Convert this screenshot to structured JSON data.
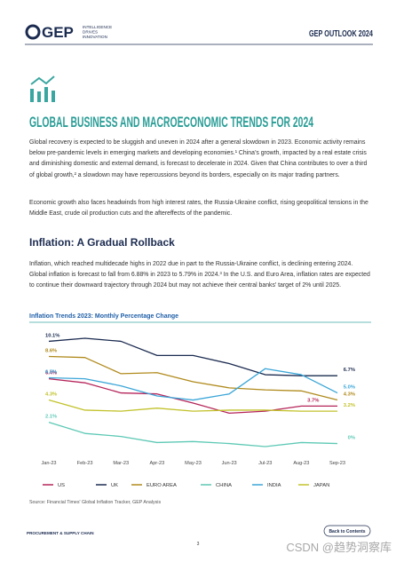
{
  "header": {
    "logo": "GEP",
    "tagline": [
      "INTELLIGENCE",
      "DRIVES",
      "INNOVATION"
    ],
    "publication": "GEP OUTLOOK 2024"
  },
  "title": "GLOBAL BUSINESS AND MACROECONOMIC TRENDS FOR 2024",
  "paragraphs": [
    "Global recovery is expected to be sluggish and uneven in 2024 after a general slowdown in 2023. Economic activity remains below pre-pandemic levels in emerging markets and developing economies.¹ China’s growth, impacted by a real estate crisis and diminishing domestic and external demand, is forecast to decelerate in 2024. Given that China contributes to over a third of global growth,² a slowdown may have repercussions beyond its borders, especially on its major trading partners.",
    "Economic growth also faces headwinds from high interest rates, the Russia-Ukraine conflict, rising geopolitical tensions in the Middle East, crude oil production cuts and the aftereffects of the pandemic."
  ],
  "section_heading": "Inflation: A Gradual Rollback",
  "section_paragraph": "Inflation, which reached multidecade highs in 2022 due in part to the Russia-Ukraine conflict, is declining entering 2024. Global inflation is forecast to fall from 6.88% in 2023 to 5.79% in 2024.³ In the U.S. and Euro Area, inflation rates are expected to continue their downward trajectory through 2024 but may not achieve their central banks’ target of 2% until 2025.",
  "chart_data": {
    "type": "line",
    "title": "Inflation Trends 2023: Monthly Percentage Change",
    "categories": [
      "Jan-23",
      "Feb-23",
      "Mar-23",
      "Apr-23",
      "May-23",
      "Jun-23",
      "Jul-23",
      "Aug-23",
      "Sep-23"
    ],
    "series": [
      {
        "name": "US",
        "color": "#b5245a",
        "values": [
          6.4,
          6.0,
          5.0,
          4.9,
          4.0,
          3.0,
          3.2,
          3.7,
          3.7
        ],
        "value_labels": [
          "6.4%",
          null,
          null,
          null,
          null,
          null,
          null,
          "3.7%",
          null
        ]
      },
      {
        "name": "UK",
        "color": "#1b2b50",
        "values": [
          10.1,
          10.4,
          10.1,
          8.7,
          8.7,
          7.9,
          6.8,
          6.7,
          6.7
        ],
        "value_labels": [
          "10.1%",
          null,
          null,
          null,
          null,
          null,
          null,
          null,
          "6.7%"
        ]
      },
      {
        "name": "EURO AREA",
        "color": "#b08a1c",
        "values": [
          8.6,
          8.5,
          6.9,
          7.0,
          6.1,
          5.5,
          5.3,
          5.2,
          4.3
        ],
        "value_labels": [
          "8.6%",
          null,
          null,
          null,
          null,
          null,
          null,
          null,
          "4.3%"
        ]
      },
      {
        "name": "CHINA",
        "color": "#5ec9b5",
        "values": [
          2.1,
          1.0,
          0.7,
          0.1,
          0.2,
          0.0,
          -0.3,
          0.1,
          0.0
        ],
        "value_labels": [
          "2.1%",
          null,
          null,
          null,
          null,
          null,
          null,
          null,
          "0%"
        ]
      },
      {
        "name": "INDIA",
        "color": "#3aa6d8",
        "values": [
          6.5,
          6.4,
          5.7,
          4.7,
          4.3,
          4.9,
          7.4,
          6.8,
          5.0
        ],
        "value_labels": [
          "6.5%",
          null,
          null,
          null,
          null,
          null,
          null,
          null,
          "5.0%"
        ]
      },
      {
        "name": "JAPAN",
        "color": "#c2c22c",
        "values": [
          4.3,
          3.3,
          3.2,
          3.5,
          3.2,
          3.3,
          3.3,
          3.2,
          3.2
        ],
        "value_labels": [
          "4.3%",
          null,
          null,
          null,
          null,
          null,
          null,
          null,
          "3.2%"
        ]
      }
    ],
    "source": "Source: Financial Times' Global Inflation Tracker, GEP Analysis"
  },
  "footer": {
    "section": "PROCUREMENT & SUPPLY CHAIN",
    "page": "3",
    "back_link": "Back to Contents"
  },
  "watermark": "CSDN @趋势洞察库"
}
